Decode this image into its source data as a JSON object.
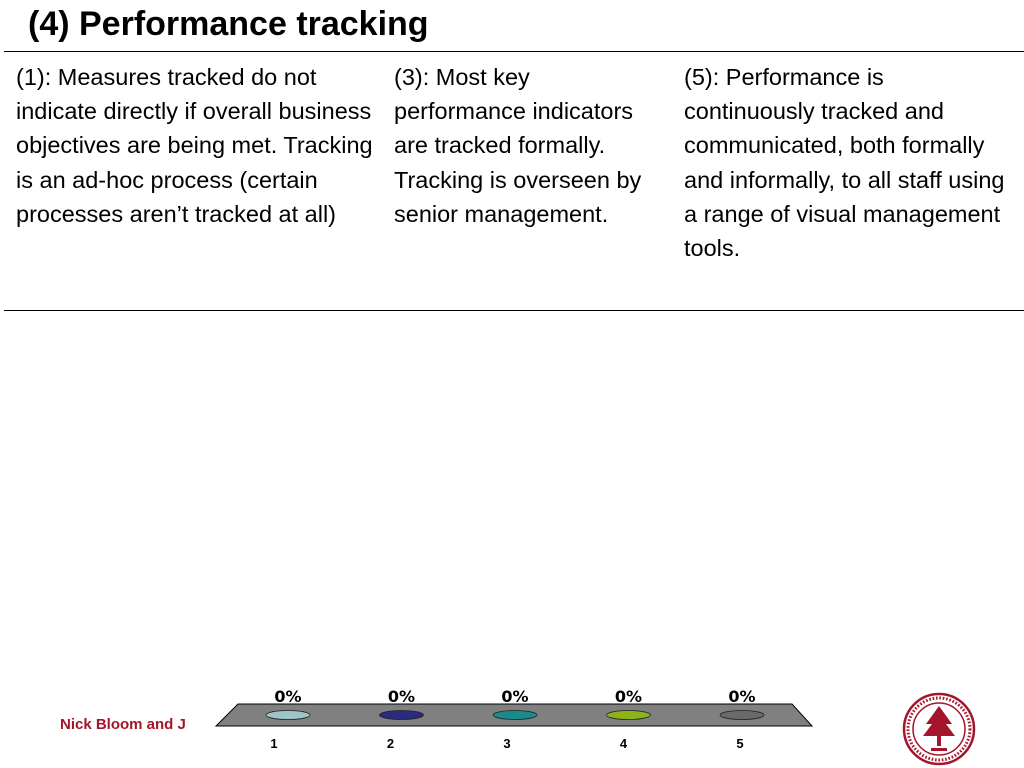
{
  "slide": {
    "title": "(4) Performance tracking",
    "columns": [
      {
        "text": "(1): Measures tracked do not indicate directly if overall business objectives are being met. Tracking is an ad-hoc process (certain processes aren’t tracked at all)"
      },
      {
        "text": "(3): Most key performance indicators are tracked formally. Tracking is overseen by senior management."
      },
      {
        "text": "(5): Performance is continuously tracked and communicated, both formally and informally, to all staff using a range of visual management tools."
      }
    ],
    "footer_author": "Nick Bloom and J"
  },
  "colors": {
    "author_text": "#a4142b",
    "seal": "#a4142b",
    "platform": "#808080"
  },
  "chart_data": {
    "type": "bar",
    "categories": [
      "1",
      "2",
      "3",
      "4",
      "5"
    ],
    "values": [
      0,
      0,
      0,
      0,
      0
    ],
    "value_labels": [
      "0%",
      "0%",
      "0%",
      "0%",
      "0%"
    ],
    "colors": [
      "#9fc4c7",
      "#2a2a80",
      "#1a8a8a",
      "#8cb418",
      "#6a6a6a"
    ],
    "ylim": [
      0,
      100
    ],
    "grid": false,
    "legend": "none"
  }
}
